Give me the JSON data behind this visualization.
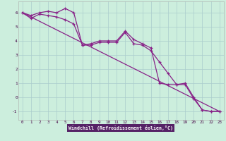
{
  "xlabel": "Windchill (Refroidissement éolien,°C)",
  "background_color": "#cceedd",
  "line_color": "#882288",
  "grid_color": "#aacccc",
  "label_bg_color": "#552266",
  "xlim": [
    -0.5,
    23.5
  ],
  "ylim": [
    -1.6,
    6.8
  ],
  "xticks": [
    0,
    1,
    2,
    3,
    4,
    5,
    6,
    7,
    8,
    9,
    10,
    11,
    12,
    13,
    14,
    15,
    16,
    17,
    18,
    19,
    20,
    21,
    22,
    23
  ],
  "yticks": [
    -1,
    0,
    1,
    2,
    3,
    4,
    5,
    6
  ],
  "line1_x": [
    0,
    1,
    2,
    3,
    4,
    5,
    6,
    7,
    8,
    9,
    10,
    11,
    12,
    13,
    14,
    15,
    16,
    17,
    18,
    19,
    20,
    21,
    22,
    23
  ],
  "line1_y": [
    6.0,
    5.8,
    6.0,
    6.1,
    6.0,
    6.3,
    6.0,
    3.7,
    3.8,
    4.0,
    4.0,
    4.0,
    4.7,
    4.1,
    3.8,
    3.5,
    1.0,
    0.9,
    0.9,
    1.0,
    0.0,
    -0.9,
    -1.0,
    -1.0
  ],
  "line2_x": [
    0,
    1,
    2,
    3,
    4,
    5,
    6,
    7,
    8,
    9,
    10,
    11,
    12,
    13,
    14,
    15,
    16,
    17,
    18,
    19,
    20,
    21,
    22,
    23
  ],
  "line2_y": [
    6.0,
    5.6,
    5.9,
    5.8,
    5.7,
    5.5,
    5.2,
    3.7,
    3.7,
    3.9,
    3.9,
    3.9,
    4.6,
    3.8,
    3.7,
    3.3,
    2.5,
    1.7,
    0.9,
    0.9,
    -0.1,
    -0.9,
    -1.0,
    -1.0
  ],
  "line3_x": [
    0,
    23
  ],
  "line3_y": [
    6.0,
    -1.0
  ]
}
